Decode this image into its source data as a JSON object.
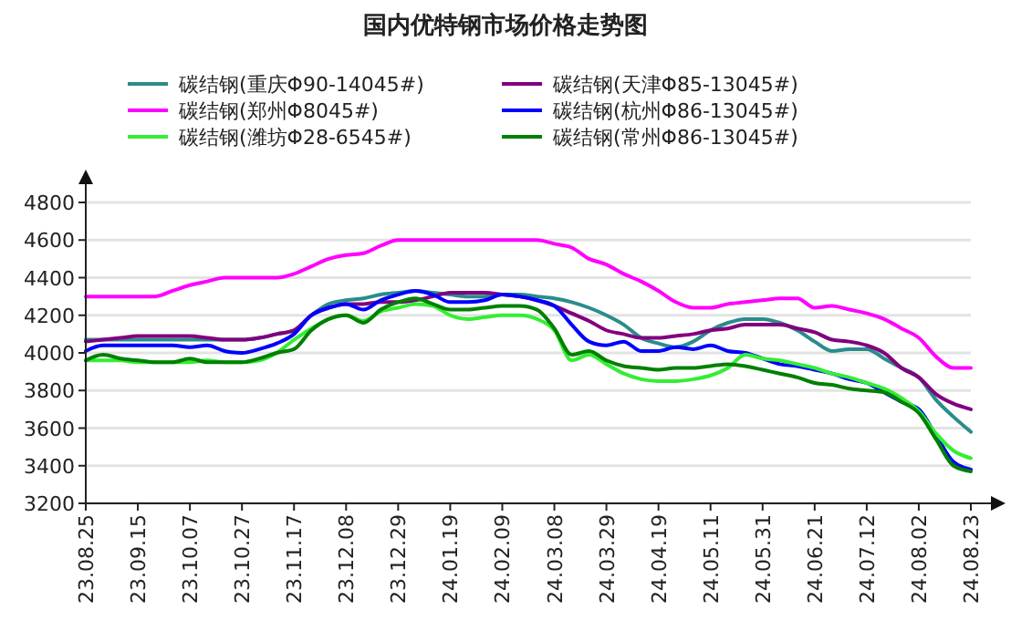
{
  "chart_data": {
    "type": "line",
    "title": "国内优特钢市场价格走势图",
    "legend": "top",
    "grid": "y",
    "ylim": [
      3200,
      4800
    ],
    "yticks": [
      3200,
      3400,
      3600,
      3800,
      4000,
      4200,
      4400,
      4600,
      4800
    ],
    "categories": [
      "23.08.25",
      null,
      null,
      "23.09.15",
      null,
      null,
      "23.10.07",
      null,
      null,
      "23.10.27",
      null,
      null,
      "23.11.17",
      null,
      null,
      "23.12.08",
      null,
      null,
      "23.12.29",
      null,
      null,
      "24.01.19",
      null,
      null,
      "24.02.09",
      null,
      null,
      "24.03.08",
      null,
      null,
      "24.03.29",
      null,
      null,
      "24.04.19",
      null,
      null,
      "24.05.11",
      null,
      null,
      "24.05.31",
      null,
      null,
      "24.06.21",
      null,
      null,
      "24.07.12",
      null,
      null,
      "24.08.02",
      null,
      null,
      "24.08.23"
    ],
    "series": [
      {
        "name": "碳结钢(重庆Φ90-14045#)",
        "color": "#2a8c8c",
        "values": [
          4070,
          4070,
          4070,
          4070,
          4070,
          4070,
          4070,
          4070,
          4070,
          4070,
          4080,
          4100,
          4120,
          4200,
          4260,
          4280,
          4290,
          4310,
          4320,
          4330,
          4320,
          4310,
          4300,
          4300,
          4310,
          4310,
          4300,
          4290,
          4270,
          4240,
          4200,
          4150,
          4080,
          4050,
          4030,
          4060,
          4120,
          4160,
          4180,
          4180,
          4160,
          4120,
          4060,
          4010,
          4020,
          4020,
          3970,
          3920,
          3870,
          3750,
          3660,
          3580
        ]
      },
      {
        "name": "碳结钢(天津Φ85-13045#)",
        "color": "#800080",
        "values": [
          4060,
          4070,
          4080,
          4090,
          4090,
          4090,
          4090,
          4080,
          4070,
          4070,
          4080,
          4100,
          4120,
          4200,
          4240,
          4260,
          4260,
          4270,
          4270,
          4280,
          4300,
          4320,
          4320,
          4320,
          4310,
          4300,
          4280,
          4250,
          4210,
          4170,
          4120,
          4100,
          4080,
          4080,
          4090,
          4100,
          4120,
          4130,
          4150,
          4150,
          4150,
          4130,
          4110,
          4070,
          4060,
          4040,
          4000,
          3920,
          3870,
          3780,
          3730,
          3700
        ]
      },
      {
        "name": "碳结钢(郑州Φ8045#)",
        "color": "#ff00ff",
        "values": [
          4300,
          4300,
          4300,
          4300,
          4300,
          4330,
          4360,
          4380,
          4400,
          4400,
          4400,
          4400,
          4420,
          4460,
          4500,
          4520,
          4530,
          4570,
          4600,
          4600,
          4600,
          4600,
          4600,
          4600,
          4600,
          4600,
          4600,
          4580,
          4560,
          4500,
          4470,
          4420,
          4380,
          4330,
          4270,
          4240,
          4240,
          4260,
          4270,
          4280,
          4290,
          4290,
          4240,
          4250,
          4230,
          4210,
          4180,
          4130,
          4080,
          3980,
          3920,
          3920
        ]
      },
      {
        "name": "碳结钢(杭州Φ86-13045#)",
        "color": "#0000ff",
        "values": [
          4010,
          4040,
          4040,
          4040,
          4040,
          4040,
          4030,
          4040,
          4010,
          4000,
          4020,
          4050,
          4100,
          4200,
          4240,
          4260,
          4230,
          4280,
          4310,
          4330,
          4310,
          4270,
          4270,
          4280,
          4310,
          4300,
          4280,
          4250,
          4150,
          4060,
          4040,
          4060,
          4010,
          4010,
          4030,
          4020,
          4040,
          4010,
          4000,
          3970,
          3940,
          3930,
          3910,
          3890,
          3860,
          3840,
          3790,
          3740,
          3700,
          3560,
          3420,
          3380
        ]
      },
      {
        "name": "碳结钢(潍坊Φ28-6545#)",
        "color": "#33ee33",
        "values": [
          3960,
          3960,
          3960,
          3950,
          3950,
          3950,
          3950,
          3960,
          3950,
          3950,
          3960,
          4000,
          4070,
          4130,
          4180,
          4200,
          4170,
          4220,
          4240,
          4260,
          4250,
          4200,
          4180,
          4190,
          4200,
          4200,
          4180,
          4120,
          3960,
          3990,
          3940,
          3890,
          3860,
          3850,
          3850,
          3860,
          3880,
          3920,
          3990,
          3970,
          3960,
          3940,
          3920,
          3890,
          3870,
          3840,
          3810,
          3760,
          3690,
          3570,
          3480,
          3440
        ]
      },
      {
        "name": "碳结钢(常州Φ86-13045#)",
        "color": "#008000",
        "values": [
          3960,
          3990,
          3970,
          3960,
          3950,
          3950,
          3970,
          3950,
          3950,
          3950,
          3970,
          4000,
          4020,
          4120,
          4180,
          4200,
          4160,
          4230,
          4270,
          4290,
          4260,
          4230,
          4230,
          4240,
          4250,
          4250,
          4230,
          4130,
          3990,
          4010,
          3960,
          3930,
          3920,
          3910,
          3920,
          3920,
          3930,
          3940,
          3930,
          3910,
          3890,
          3870,
          3840,
          3830,
          3810,
          3800,
          3790,
          3740,
          3680,
          3540,
          3400,
          3370
        ]
      }
    ]
  }
}
